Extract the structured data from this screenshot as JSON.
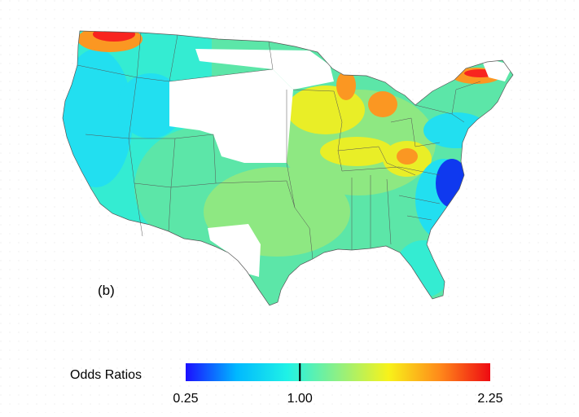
{
  "panel_label": "(b)",
  "legend": {
    "title": "Odds Ratios",
    "tick_labels": [
      "0.25",
      "1.00",
      "2.25"
    ],
    "min": 0.25,
    "reference": 1.0,
    "max": 2.25,
    "color_stops": [
      "#1b0fff",
      "#00b8ff",
      "#1ff2e6",
      "#8ef084",
      "#f8f21a",
      "#ff8a1a",
      "#ee0a12"
    ]
  },
  "map": {
    "region": "contiguous-united-states",
    "colors": {
      "cyan": "#34ecd2",
      "turquoise": "#22dff0",
      "teal_green": "#5ce6a8",
      "green": "#8ee882",
      "yellow": "#e9ee27",
      "orange": "#fb9722",
      "red": "#f8241f",
      "blue": "#0f39ef",
      "no_data": "#ffffff",
      "border": "#555555"
    }
  }
}
